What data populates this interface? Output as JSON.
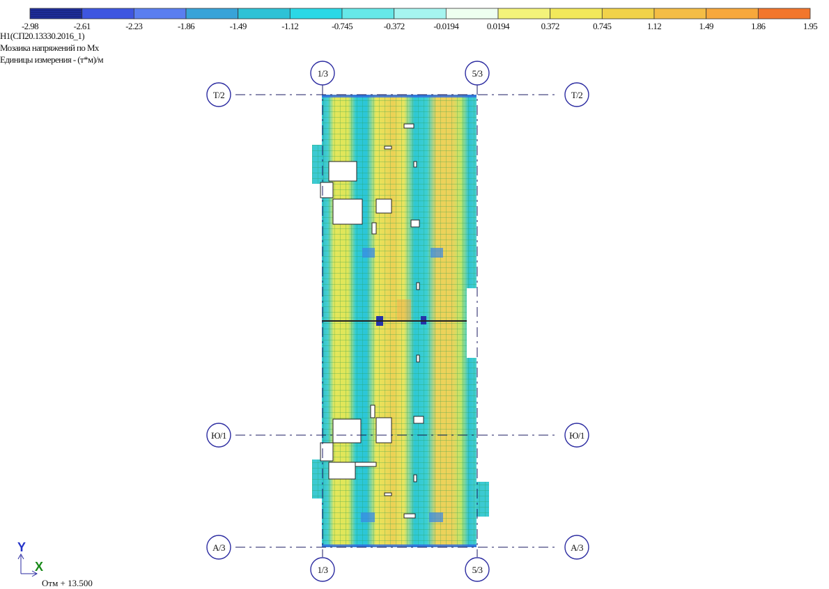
{
  "color_scale": {
    "colors": [
      "#1f2f9e",
      "#3e56e0",
      "#5a7ef0",
      "#38a3d8",
      "#2ec2d6",
      "#2bd8e6",
      "#66e8e8",
      "#a6f5f0",
      "#eefff0",
      "#f3f37a",
      "#f2e85a",
      "#f1d24a",
      "#f4bd45",
      "#f7a83c",
      "#f2762c"
    ],
    "labels": [
      "-2.98",
      "-2.61",
      "-2.23",
      "-1.86",
      "-1.49",
      "-1.12",
      "-0.745",
      "-0.372",
      "-0.0194",
      "0.0194",
      "0.372",
      "0.745",
      "1.12",
      "1.49",
      "1.86",
      "1.95"
    ]
  },
  "legend": {
    "line1": "Н1(СП20.13330.2016_1)",
    "line2": "Мозаика напряжений по Mx",
    "line3": "Единицы измерения - (т*м)/м"
  },
  "axes": {
    "col_left": "1/3",
    "col_right": "5/3",
    "row_top": "Т/2",
    "row_mid": "Ю/1",
    "row_bottom": "А/3"
  },
  "coord": {
    "y_label": "Y",
    "x_label": "X",
    "elevation": "Отм + 13.500"
  }
}
